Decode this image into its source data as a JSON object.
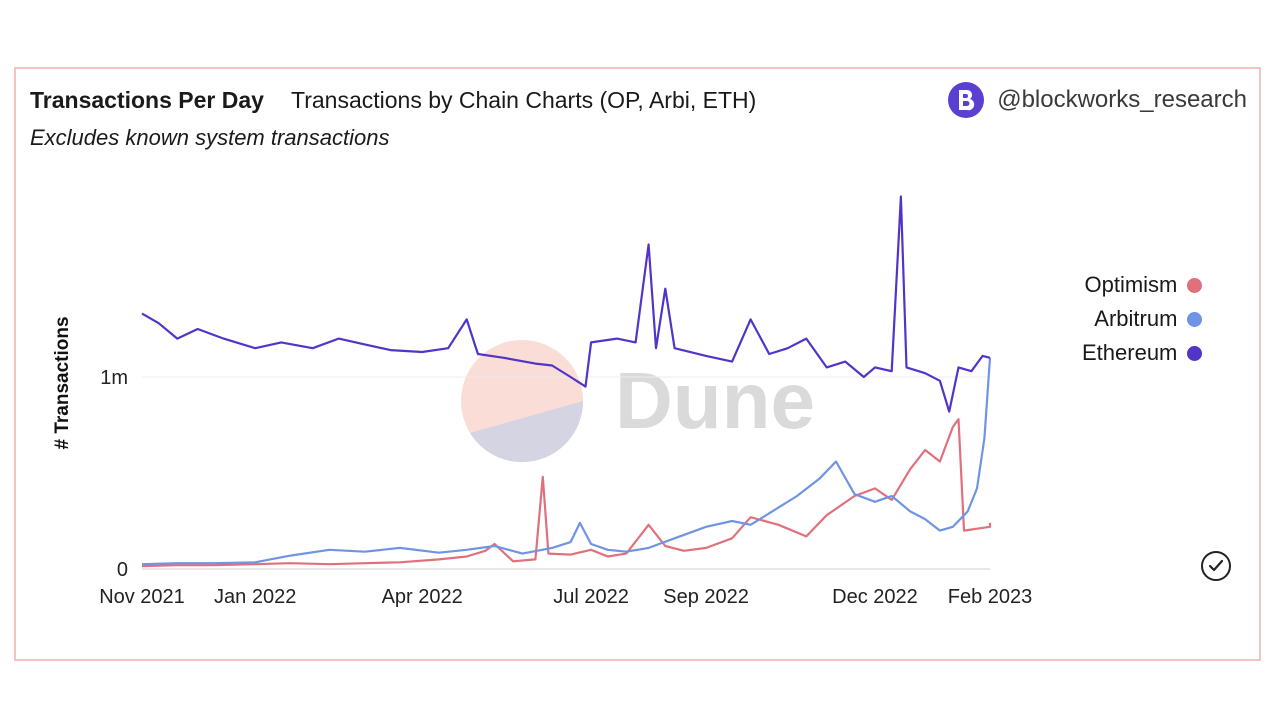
{
  "header": {
    "title": "Transactions Per Day",
    "subtitle": "Transactions by Chain Charts (OP, Arbi, ETH)",
    "description": "Excludes known system transactions",
    "brand_icon": "blockworks-logo-icon",
    "brand_handle": "@blockworks_research"
  },
  "watermark": {
    "text": "Dune"
  },
  "status_icon": "check-circle-icon",
  "colors": {
    "optimism": "#e0717c",
    "arbitrum": "#6f94e3",
    "ethereum": "#5234c9",
    "card_border": "#f2c4c0"
  },
  "chart_data": {
    "type": "line",
    "ylabel": "# Transactions",
    "xlabel": "",
    "y_ticks": [
      {
        "value": 0,
        "label": "0"
      },
      {
        "value": 1000000,
        "label": "1m"
      }
    ],
    "x_ticks": [
      {
        "date": "2021-11-01",
        "label": "Nov 2021"
      },
      {
        "date": "2022-01-01",
        "label": "Jan 2022"
      },
      {
        "date": "2022-04-01",
        "label": "Apr 2022"
      },
      {
        "date": "2022-07-01",
        "label": "Jul 2022"
      },
      {
        "date": "2022-09-01",
        "label": "Sep 2022"
      },
      {
        "date": "2022-12-01",
        "label": "Dec 2022"
      },
      {
        "date": "2023-02-01",
        "label": "Feb 2023"
      }
    ],
    "ylim": [
      0,
      2000000
    ],
    "legend_position": "right",
    "grid": "horizontal",
    "series": [
      {
        "name": "Optimism",
        "color": "#e0717c",
        "points": [
          [
            "2021-11-01",
            15000
          ],
          [
            "2021-11-20",
            20000
          ],
          [
            "2021-12-10",
            20000
          ],
          [
            "2022-01-01",
            25000
          ],
          [
            "2022-01-20",
            30000
          ],
          [
            "2022-02-10",
            25000
          ],
          [
            "2022-03-01",
            30000
          ],
          [
            "2022-03-20",
            35000
          ],
          [
            "2022-04-10",
            50000
          ],
          [
            "2022-04-25",
            65000
          ],
          [
            "2022-05-05",
            95000
          ],
          [
            "2022-05-10",
            130000
          ],
          [
            "2022-05-20",
            40000
          ],
          [
            "2022-06-01",
            50000
          ],
          [
            "2022-06-05",
            480000
          ],
          [
            "2022-06-08",
            80000
          ],
          [
            "2022-06-20",
            75000
          ],
          [
            "2022-07-01",
            100000
          ],
          [
            "2022-07-10",
            65000
          ],
          [
            "2022-07-20",
            80000
          ],
          [
            "2022-08-01",
            230000
          ],
          [
            "2022-08-10",
            120000
          ],
          [
            "2022-08-20",
            95000
          ],
          [
            "2022-09-01",
            110000
          ],
          [
            "2022-09-15",
            160000
          ],
          [
            "2022-09-25",
            270000
          ],
          [
            "2022-10-10",
            230000
          ],
          [
            "2022-10-25",
            170000
          ],
          [
            "2022-11-05",
            280000
          ],
          [
            "2022-11-20",
            380000
          ],
          [
            "2022-12-01",
            420000
          ],
          [
            "2022-12-10",
            360000
          ],
          [
            "2022-12-20",
            520000
          ],
          [
            "2022-12-28",
            620000
          ],
          [
            "2023-01-05",
            560000
          ],
          [
            "2023-01-12",
            740000
          ],
          [
            "2023-01-15",
            780000
          ],
          [
            "2023-01-18",
            200000
          ],
          [
            "2023-01-25",
            210000
          ],
          [
            "2023-02-01",
            220000
          ],
          [
            "2023-02-01",
            240000
          ]
        ]
      },
      {
        "name": "Arbitrum",
        "color": "#6f94e3",
        "points": [
          [
            "2021-11-01",
            25000
          ],
          [
            "2021-11-20",
            30000
          ],
          [
            "2021-12-10",
            30000
          ],
          [
            "2022-01-01",
            35000
          ],
          [
            "2022-01-20",
            70000
          ],
          [
            "2022-02-10",
            100000
          ],
          [
            "2022-03-01",
            90000
          ],
          [
            "2022-03-20",
            110000
          ],
          [
            "2022-04-10",
            85000
          ],
          [
            "2022-04-25",
            100000
          ],
          [
            "2022-05-10",
            120000
          ],
          [
            "2022-05-25",
            80000
          ],
          [
            "2022-06-10",
            110000
          ],
          [
            "2022-06-20",
            140000
          ],
          [
            "2022-06-25",
            240000
          ],
          [
            "2022-07-01",
            130000
          ],
          [
            "2022-07-10",
            100000
          ],
          [
            "2022-07-20",
            90000
          ],
          [
            "2022-08-01",
            110000
          ],
          [
            "2022-08-15",
            160000
          ],
          [
            "2022-09-01",
            220000
          ],
          [
            "2022-09-15",
            250000
          ],
          [
            "2022-09-25",
            230000
          ],
          [
            "2022-10-05",
            290000
          ],
          [
            "2022-10-20",
            380000
          ],
          [
            "2022-11-01",
            470000
          ],
          [
            "2022-11-10",
            560000
          ],
          [
            "2022-11-20",
            390000
          ],
          [
            "2022-12-01",
            350000
          ],
          [
            "2022-12-10",
            380000
          ],
          [
            "2022-12-20",
            300000
          ],
          [
            "2022-12-28",
            260000
          ],
          [
            "2023-01-05",
            200000
          ],
          [
            "2023-01-12",
            220000
          ],
          [
            "2023-01-20",
            300000
          ],
          [
            "2023-01-25",
            420000
          ],
          [
            "2023-01-29",
            680000
          ],
          [
            "2023-02-01",
            1100000
          ]
        ]
      },
      {
        "name": "Ethereum",
        "color": "#5234c9",
        "points": [
          [
            "2021-11-01",
            1330000
          ],
          [
            "2021-11-10",
            1280000
          ],
          [
            "2021-11-20",
            1200000
          ],
          [
            "2021-12-01",
            1250000
          ],
          [
            "2021-12-15",
            1200000
          ],
          [
            "2022-01-01",
            1150000
          ],
          [
            "2022-01-15",
            1180000
          ],
          [
            "2022-02-01",
            1150000
          ],
          [
            "2022-02-15",
            1200000
          ],
          [
            "2022-03-01",
            1170000
          ],
          [
            "2022-03-15",
            1140000
          ],
          [
            "2022-04-01",
            1130000
          ],
          [
            "2022-04-15",
            1150000
          ],
          [
            "2022-04-25",
            1300000
          ],
          [
            "2022-05-01",
            1120000
          ],
          [
            "2022-05-15",
            1100000
          ],
          [
            "2022-06-01",
            1070000
          ],
          [
            "2022-06-10",
            1060000
          ],
          [
            "2022-06-20",
            1000000
          ],
          [
            "2022-06-28",
            950000
          ],
          [
            "2022-07-01",
            1180000
          ],
          [
            "2022-07-15",
            1200000
          ],
          [
            "2022-07-25",
            1180000
          ],
          [
            "2022-08-01",
            1690000
          ],
          [
            "2022-08-05",
            1150000
          ],
          [
            "2022-08-10",
            1460000
          ],
          [
            "2022-08-15",
            1150000
          ],
          [
            "2022-09-01",
            1110000
          ],
          [
            "2022-09-15",
            1080000
          ],
          [
            "2022-09-25",
            1300000
          ],
          [
            "2022-10-05",
            1120000
          ],
          [
            "2022-10-15",
            1150000
          ],
          [
            "2022-10-25",
            1200000
          ],
          [
            "2022-11-05",
            1050000
          ],
          [
            "2022-11-15",
            1080000
          ],
          [
            "2022-11-25",
            1000000
          ],
          [
            "2022-12-01",
            1050000
          ],
          [
            "2022-12-10",
            1030000
          ],
          [
            "2022-12-15",
            1940000
          ],
          [
            "2022-12-18",
            1050000
          ],
          [
            "2022-12-28",
            1020000
          ],
          [
            "2023-01-05",
            980000
          ],
          [
            "2023-01-10",
            820000
          ],
          [
            "2023-01-15",
            1050000
          ],
          [
            "2023-01-22",
            1030000
          ],
          [
            "2023-01-28",
            1110000
          ],
          [
            "2023-02-01",
            1100000
          ]
        ]
      }
    ]
  }
}
